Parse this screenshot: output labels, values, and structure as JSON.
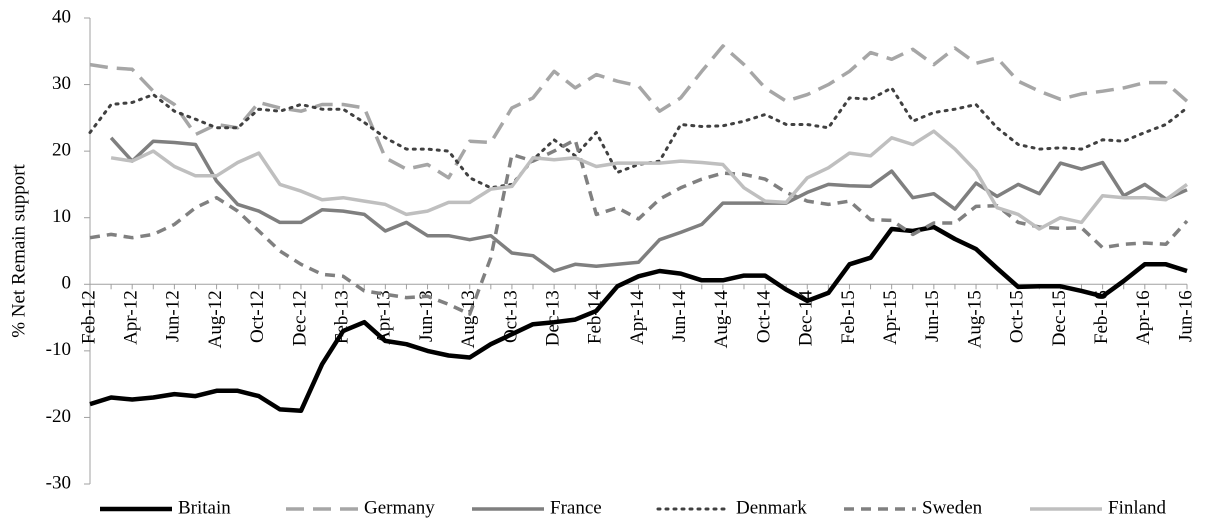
{
  "chart_data": {
    "type": "line",
    "y_label": "% Net Remain support",
    "categories": [
      "Feb-12",
      null,
      "Apr-12",
      null,
      "Jun-12",
      null,
      "Aug-12",
      null,
      "Oct-12",
      null,
      "Dec-12",
      null,
      "Feb-13",
      null,
      "Apr-13",
      null,
      "Jun-13",
      null,
      "Aug-13",
      null,
      "Oct-13",
      null,
      "Dec-13",
      null,
      "Feb-14",
      null,
      "Apr-14",
      null,
      "Jun-14",
      null,
      "Aug-14",
      null,
      "Oct-14",
      null,
      "Dec-14",
      null,
      "Feb-15",
      null,
      "Apr-15",
      null,
      "Jun-15",
      null,
      "Aug-15",
      null,
      "Oct-15",
      null,
      "Dec-15",
      null,
      "Feb-16",
      null,
      "Apr-16",
      null,
      "Jun-16"
    ],
    "ylim": [
      -30,
      40
    ],
    "yticks": [
      -30,
      -20,
      -10,
      0,
      10,
      20,
      30,
      40
    ],
    "legend": "bottom",
    "series": [
      {
        "name": "Britain",
        "color": "#000000",
        "dash": "thick",
        "values": [
          -18,
          -17,
          -17.3,
          -17,
          -16.5,
          -16.8,
          -16,
          -16,
          -16.8,
          -18.8,
          -19,
          -12,
          -7,
          -5.7,
          -8.5,
          -9,
          -10,
          -10.7,
          -11,
          -9,
          -7.5,
          -6,
          -5.7,
          -5.3,
          -4,
          -0.3,
          1.2,
          2,
          1.6,
          0.6,
          0.6,
          1.3,
          1.3,
          -0.8,
          -2.5,
          -1.3,
          3,
          4,
          8.3,
          8,
          8.6,
          6.8,
          5.3,
          2.4,
          -0.4,
          -0.3,
          -0.3,
          -1,
          -1.8,
          0.5,
          3,
          3,
          2
        ]
      },
      {
        "name": "Germany",
        "color": "#a6a6a6",
        "dash": "long-dash",
        "values": [
          33,
          32.5,
          32.3,
          29,
          27,
          22.5,
          24,
          23.5,
          27.3,
          26.5,
          26,
          27,
          27,
          26.5,
          19,
          17.3,
          18,
          16,
          21.5,
          21.3,
          26.5,
          28,
          32,
          29.5,
          31.5,
          30.5,
          29.8,
          26,
          28,
          32,
          35.8,
          33,
          29.5,
          27.5,
          28.5,
          30,
          32,
          34.8,
          33.8,
          35.3,
          33,
          35.5,
          33.2,
          34,
          30.5,
          29,
          27.8,
          28.6,
          29,
          29.5,
          30.3,
          30.3,
          27.5
        ]
      },
      {
        "name": "France",
        "color": "#7f7f7f",
        "dash": "solid",
        "values": [
          null,
          22,
          18.5,
          21.5,
          21.3,
          21,
          15.5,
          12,
          11,
          9.3,
          9.3,
          11.2,
          11,
          10.5,
          8,
          9.3,
          7.3,
          7.3,
          6.7,
          7.3,
          4.7,
          4.3,
          2,
          3,
          2.7,
          3,
          3.3,
          6.7,
          7.8,
          9,
          12.2,
          12.2,
          12.2,
          12.2,
          13.8,
          15,
          14.8,
          14.7,
          17,
          13,
          13.6,
          11.3,
          15.2,
          13.2,
          15,
          13.6,
          18.2,
          17.3,
          18.3,
          13.3,
          15,
          12.8,
          14.2
        ]
      },
      {
        "name": "Denmark",
        "color": "#404040",
        "dash": "dot",
        "values": [
          22.8,
          27,
          27.3,
          28.5,
          26,
          24.8,
          23.5,
          23.5,
          26.3,
          26,
          27,
          26.3,
          26.3,
          24.3,
          22,
          20.3,
          20.3,
          20,
          16,
          14.5,
          15,
          18.7,
          21.7,
          19.3,
          22.8,
          16.8,
          18,
          18.5,
          24,
          23.7,
          23.8,
          24.5,
          25.5,
          24,
          24,
          23.5,
          28,
          27.8,
          29.5,
          24.5,
          25.8,
          26.3,
          27,
          23.5,
          21,
          20.3,
          20.5,
          20.3,
          21.7,
          21.5,
          22.8,
          24,
          26.5
        ]
      },
      {
        "name": "Sweden",
        "color": "#808080",
        "dash": "dash",
        "values": [
          7,
          7.5,
          7,
          7.5,
          9,
          11.5,
          13,
          11,
          8,
          5,
          3,
          1.5,
          1.2,
          -1,
          -1.5,
          -2,
          -1.8,
          -3,
          -4.5,
          4,
          19.5,
          18.5,
          20,
          21.7,
          10.5,
          11.5,
          9.8,
          12.8,
          14.5,
          15.8,
          16.7,
          16.5,
          15.8,
          13.8,
          12.5,
          12,
          12.5,
          9.7,
          9.6,
          7.5,
          9.2,
          9.2,
          11.7,
          11.8,
          9.3,
          8.6,
          8.4,
          8.5,
          5.5,
          6,
          6.2,
          6,
          9.5
        ]
      },
      {
        "name": "Finland",
        "color": "#bfbfbf",
        "dash": "solid",
        "values": [
          null,
          19,
          18.5,
          20,
          17.7,
          16.3,
          16.3,
          18.3,
          19.7,
          15,
          14,
          12.7,
          13,
          12.5,
          12,
          10.5,
          11,
          12.3,
          12.3,
          14.3,
          14.7,
          19,
          18.7,
          19,
          17.7,
          18.2,
          18.2,
          18.2,
          18.5,
          18.3,
          18,
          14.5,
          12.5,
          12.3,
          16,
          17.5,
          19.7,
          19.3,
          22,
          21,
          23,
          20.3,
          17,
          11.5,
          10.5,
          8.3,
          10,
          9.3,
          13.3,
          13,
          13,
          12.7,
          15
        ]
      }
    ]
  }
}
